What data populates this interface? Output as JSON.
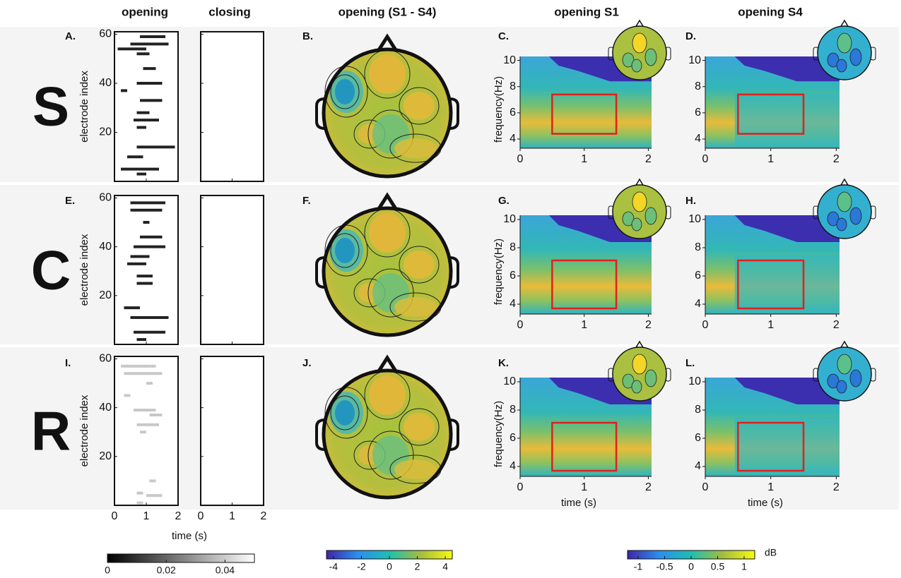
{
  "columns": [
    "opening",
    "closing",
    "opening (S1 - S4)",
    "opening S1",
    "opening S4"
  ],
  "rows": [
    {
      "label": "S",
      "panels": [
        "A.",
        "B.",
        "C.",
        "D."
      ],
      "raster_color": "#222222",
      "raster": [
        [
          59,
          0.8,
          1.6
        ],
        [
          56,
          0.5,
          1.7
        ],
        [
          54,
          0.1,
          1.0
        ],
        [
          52,
          0.7,
          1.1
        ],
        [
          46,
          0.9,
          1.3
        ],
        [
          40,
          0.7,
          1.5
        ],
        [
          37,
          0.2,
          0.4
        ],
        [
          33,
          0.8,
          1.5
        ],
        [
          28,
          0.7,
          1.1
        ],
        [
          25,
          0.6,
          1.4
        ],
        [
          22,
          0.7,
          1.0
        ],
        [
          14,
          0.7,
          1.9
        ],
        [
          10,
          0.4,
          0.9
        ],
        [
          5,
          0.2,
          1.4
        ],
        [
          3,
          0.7,
          1.0
        ]
      ],
      "roi": {
        "x": [
          0.5,
          1.5
        ],
        "y": [
          4.4,
          7.4
        ]
      }
    },
    {
      "label": "C",
      "panels": [
        "E.",
        "F.",
        "G.",
        "H."
      ],
      "raster_color": "#222222",
      "raster": [
        [
          58,
          0.5,
          1.6
        ],
        [
          55,
          0.5,
          1.5
        ],
        [
          50,
          0.9,
          1.1
        ],
        [
          44,
          0.8,
          1.5
        ],
        [
          40,
          0.6,
          1.6
        ],
        [
          36,
          0.5,
          1.1
        ],
        [
          33,
          0.4,
          1.0
        ],
        [
          28,
          0.7,
          1.2
        ],
        [
          25,
          0.7,
          1.2
        ],
        [
          15,
          0.3,
          0.8
        ],
        [
          11,
          0.5,
          1.7
        ],
        [
          5,
          0.6,
          1.6
        ],
        [
          2,
          0.7,
          1.0
        ]
      ],
      "roi": {
        "x": [
          0.5,
          1.5
        ],
        "y": [
          3.7,
          7.1
        ]
      }
    },
    {
      "label": "R",
      "panels": [
        "I.",
        "J.",
        "K.",
        "L."
      ],
      "raster_color": "#c8c8c8",
      "raster": [
        [
          57,
          0.2,
          1.0
        ],
        [
          57,
          0.9,
          1.3
        ],
        [
          54,
          0.3,
          1.5
        ],
        [
          50,
          1.0,
          1.2
        ],
        [
          45,
          0.3,
          0.5
        ],
        [
          39,
          0.6,
          1.3
        ],
        [
          37,
          1.1,
          1.5
        ],
        [
          33,
          0.7,
          1.4
        ],
        [
          30,
          0.8,
          1.0
        ],
        [
          10,
          1.1,
          1.3
        ],
        [
          5,
          0.7,
          0.9
        ],
        [
          4,
          1.0,
          1.5
        ],
        [
          1,
          0.7,
          0.9
        ]
      ],
      "roi": {
        "x": [
          0.5,
          1.5
        ],
        "y": [
          3.7,
          7.1
        ]
      }
    }
  ],
  "raster_axis": {
    "ylabel": "electrode index",
    "xlabel": "time (s)",
    "xlim": [
      0,
      2
    ],
    "ylim": [
      0,
      61
    ],
    "xticks": [
      0,
      1,
      2
    ],
    "yticks": [
      20,
      40,
      60
    ]
  },
  "spectrogram_axis": {
    "ylabel": "frequency(Hz)",
    "xlabel": "time (s)",
    "xlim": [
      0,
      2.05
    ],
    "ylim": [
      3.3,
      10.3
    ],
    "xticks": [
      0,
      1,
      2
    ],
    "yticks": [
      4,
      6,
      8,
      10
    ]
  },
  "colorbars": [
    {
      "lim": [
        0,
        0.05
      ],
      "ticks": [
        0,
        0.02,
        0.04
      ]
    },
    {
      "lim": [
        -4.5,
        4.5
      ],
      "ticks": [
        -4,
        -2,
        0,
        2,
        4
      ]
    },
    {
      "lim": [
        -1.2,
        1.2
      ],
      "ticks": [
        -1,
        -0.5,
        0,
        0.5,
        1
      ],
      "unit": "dB"
    }
  ]
}
